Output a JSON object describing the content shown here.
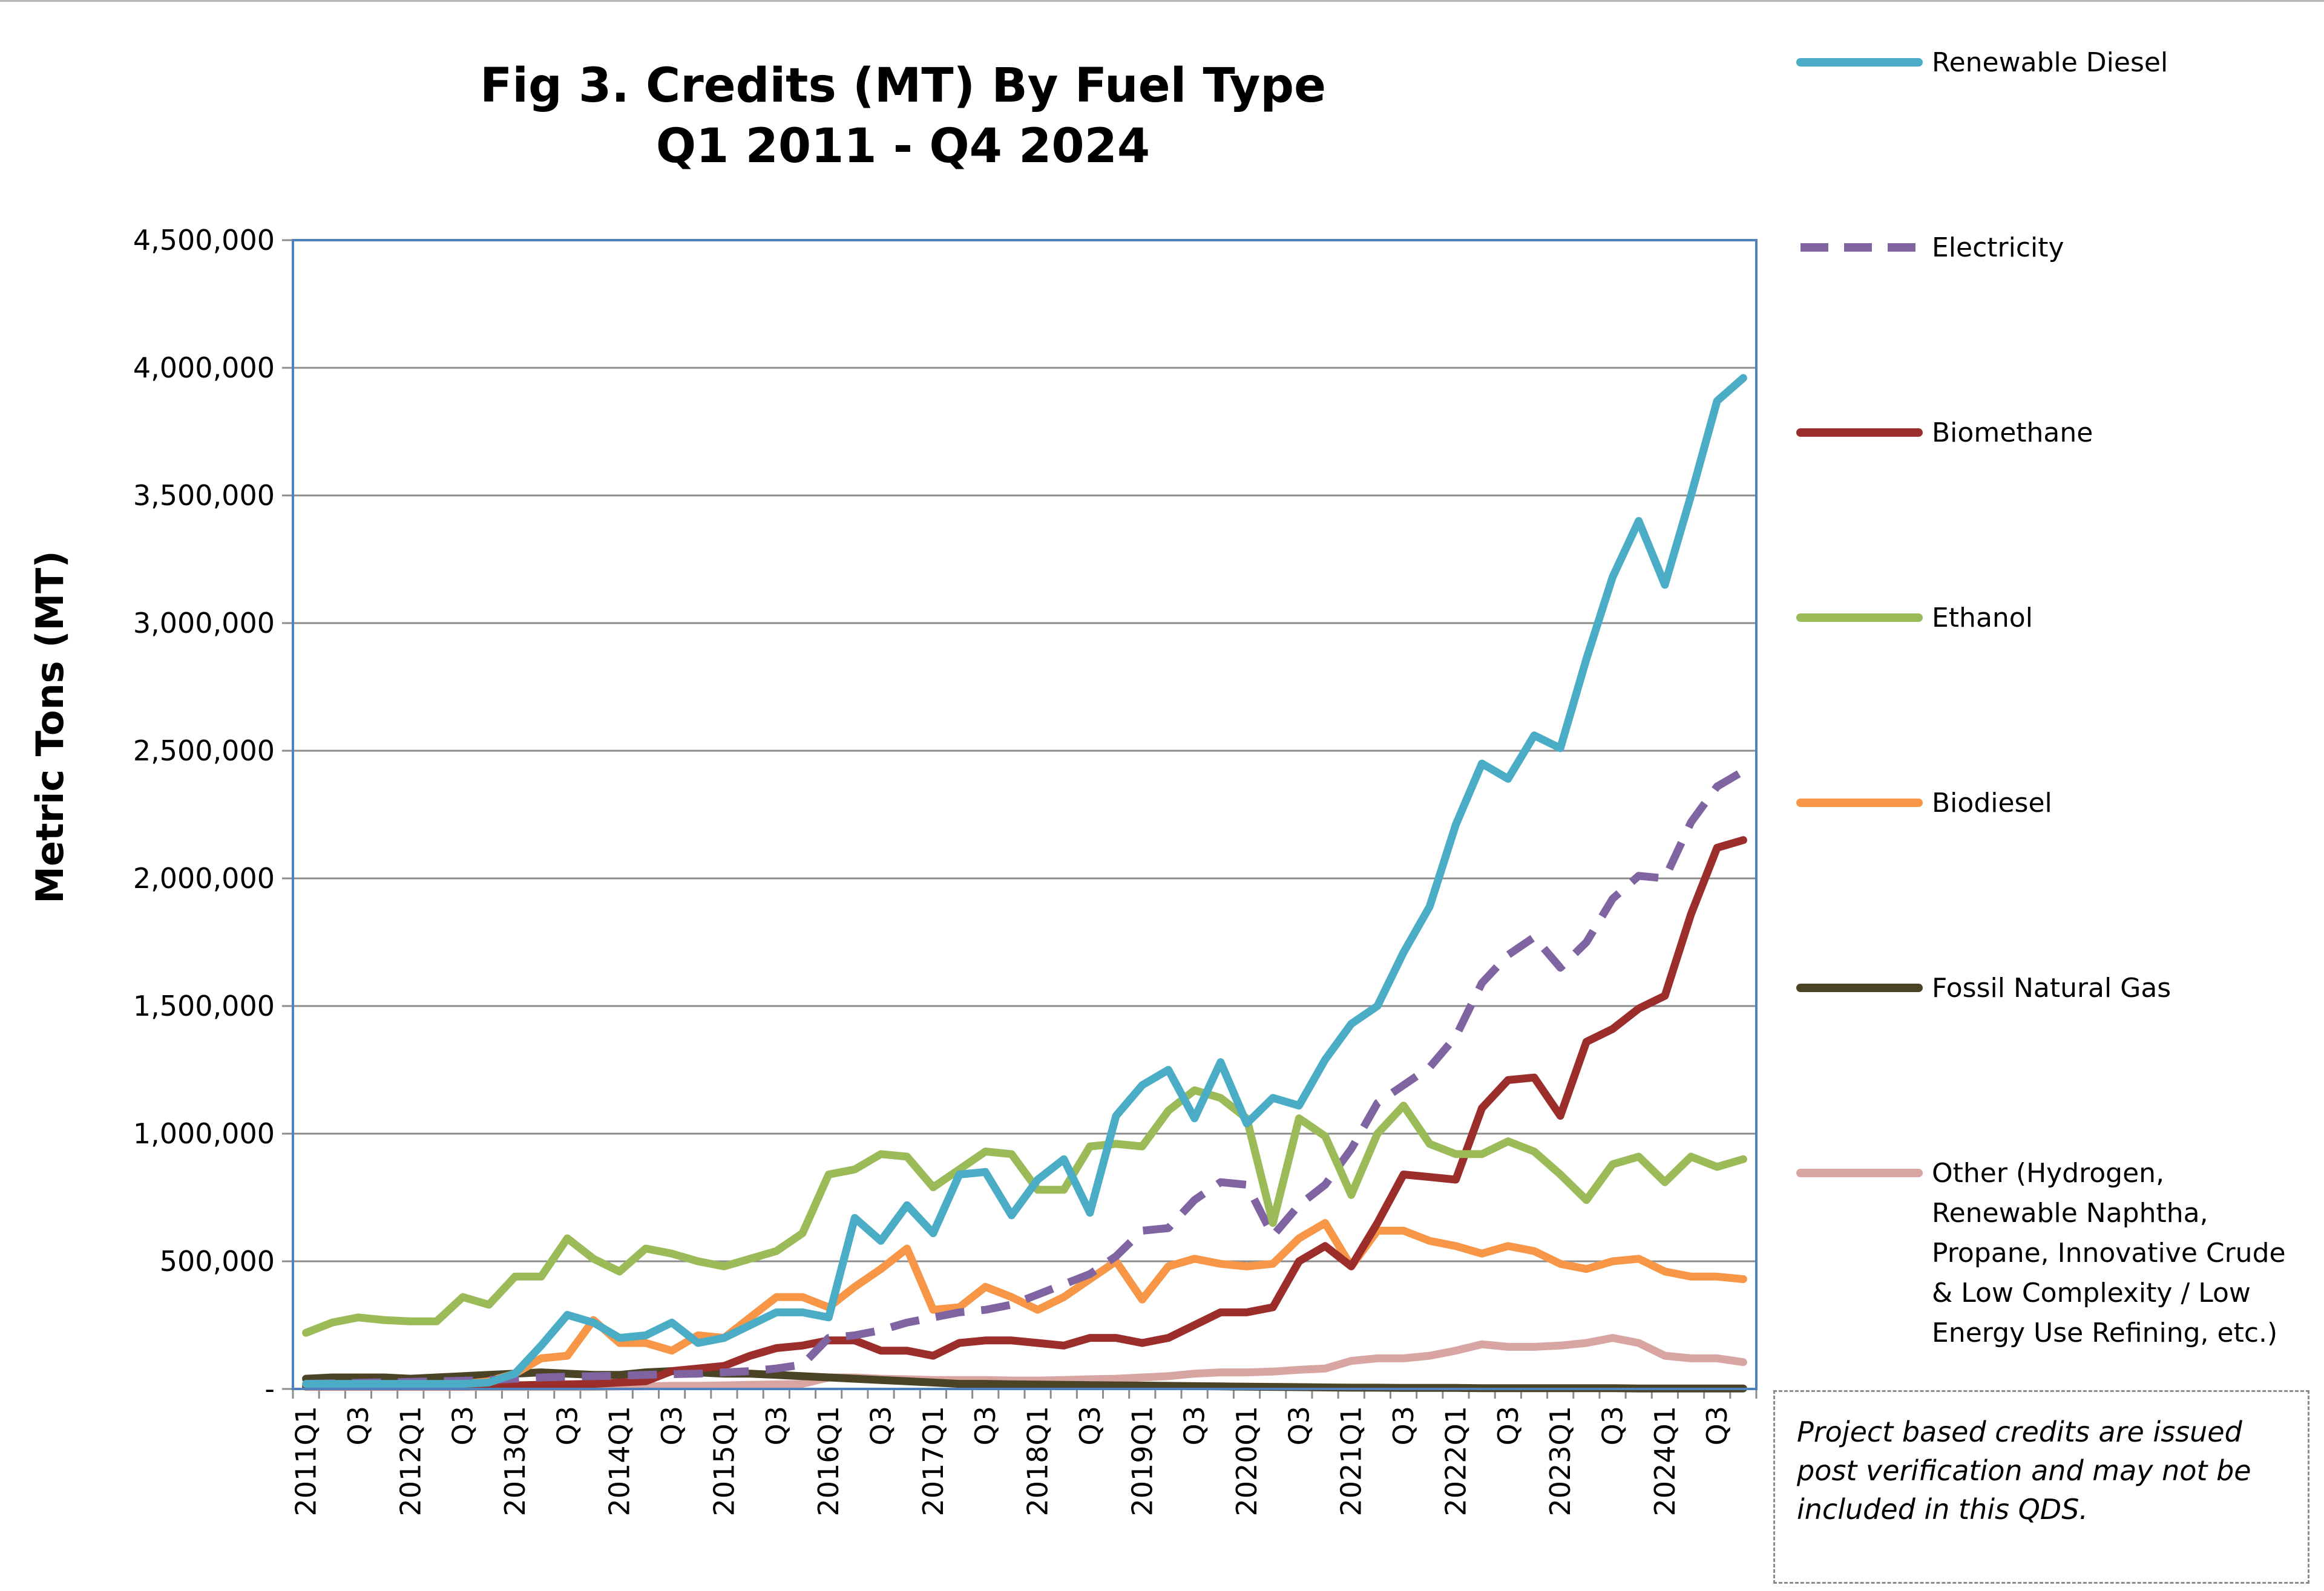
{
  "chart_data": {
    "type": "line",
    "title": [
      "Fig 3. Credits (MT) By Fuel Type",
      "Q1 2011 - Q4 2024"
    ],
    "ylabel": "Metric Tons (MT)",
    "xlabel": "",
    "ylim": [
      0,
      4500000
    ],
    "yticks": [
      0,
      500000,
      1000000,
      1500000,
      2000000,
      2500000,
      3000000,
      3500000,
      4000000,
      4500000
    ],
    "ytick_labels": [
      "-",
      "500,000",
      "1,000,000",
      "1,500,000",
      "2,000,000",
      "2,500,000",
      "3,000,000",
      "3,500,000",
      "4,000,000",
      "4,500,000"
    ],
    "x_count": 56,
    "xtick_labels": [
      {
        "i": 0,
        "label": "2011Q1"
      },
      {
        "i": 2,
        "label": "Q3"
      },
      {
        "i": 4,
        "label": "2012Q1"
      },
      {
        "i": 6,
        "label": "Q3"
      },
      {
        "i": 8,
        "label": "2013Q1"
      },
      {
        "i": 10,
        "label": "Q3"
      },
      {
        "i": 12,
        "label": "2014Q1"
      },
      {
        "i": 14,
        "label": "Q3"
      },
      {
        "i": 16,
        "label": "2015Q1"
      },
      {
        "i": 18,
        "label": "Q3"
      },
      {
        "i": 20,
        "label": "2016Q1"
      },
      {
        "i": 22,
        "label": "Q3"
      },
      {
        "i": 24,
        "label": "2017Q1"
      },
      {
        "i": 26,
        "label": "Q3"
      },
      {
        "i": 28,
        "label": "2018Q1"
      },
      {
        "i": 30,
        "label": "Q3"
      },
      {
        "i": 32,
        "label": "2019Q1"
      },
      {
        "i": 34,
        "label": "Q3"
      },
      {
        "i": 36,
        "label": "2020Q1"
      },
      {
        "i": 38,
        "label": "Q3"
      },
      {
        "i": 40,
        "label": "2021Q1"
      },
      {
        "i": 42,
        "label": "Q3"
      },
      {
        "i": 44,
        "label": "2022Q1"
      },
      {
        "i": 46,
        "label": "Q3"
      },
      {
        "i": 48,
        "label": "2023Q1"
      },
      {
        "i": 50,
        "label": "Q3"
      },
      {
        "i": 52,
        "label": "2024Q1"
      },
      {
        "i": 54,
        "label": "Q3"
      }
    ],
    "grid": true,
    "legend_position": "right",
    "series": [
      {
        "name": "Renewable Diesel",
        "color": "#4BACC6",
        "dash": false,
        "values": [
          20000,
          20000,
          20000,
          20000,
          20000,
          20000,
          20000,
          25000,
          60000,
          170000,
          290000,
          260000,
          200000,
          210000,
          260000,
          180000,
          200000,
          250000,
          300000,
          300000,
          280000,
          670000,
          580000,
          720000,
          610000,
          840000,
          850000,
          680000,
          820000,
          900000,
          690000,
          1070000,
          1190000,
          1250000,
          1060000,
          1280000,
          1040000,
          1140000,
          1110000,
          1290000,
          1430000,
          1500000,
          1710000,
          1890000,
          2210000,
          2450000,
          2390000,
          2560000,
          2510000,
          2860000,
          3180000,
          3400000,
          3150000,
          3500000,
          3870000,
          3960000
        ]
      },
      {
        "name": "Electricity",
        "color": "#8064A2",
        "dash": true,
        "values": [
          20000,
          22000,
          24000,
          26000,
          28000,
          30000,
          32000,
          35000,
          40000,
          45000,
          48000,
          50000,
          52000,
          55000,
          58000,
          60000,
          65000,
          70000,
          80000,
          95000,
          200000,
          210000,
          230000,
          260000,
          280000,
          300000,
          310000,
          330000,
          370000,
          410000,
          450000,
          520000,
          620000,
          630000,
          740000,
          810000,
          800000,
          600000,
          720000,
          800000,
          940000,
          1120000,
          1190000,
          1260000,
          1380000,
          1590000,
          1700000,
          1770000,
          1650000,
          1750000,
          1920000,
          2010000,
          2000000,
          2220000,
          2360000,
          2420000
        ]
      },
      {
        "name": "Biomethane",
        "color": "#9B2D2A",
        "dash": false,
        "values": [
          10000,
          10000,
          10000,
          10000,
          10000,
          10000,
          10000,
          12000,
          14000,
          16000,
          18000,
          20000,
          25000,
          30000,
          70000,
          80000,
          90000,
          130000,
          160000,
          170000,
          190000,
          190000,
          150000,
          150000,
          130000,
          180000,
          190000,
          190000,
          180000,
          170000,
          200000,
          200000,
          180000,
          200000,
          250000,
          300000,
          300000,
          320000,
          500000,
          560000,
          480000,
          650000,
          840000,
          830000,
          820000,
          1100000,
          1210000,
          1220000,
          1070000,
          1360000,
          1410000,
          1490000,
          1540000,
          1860000,
          2120000,
          2150000
        ]
      },
      {
        "name": "Ethanol",
        "color": "#9BBB59",
        "dash": false,
        "values": [
          220000,
          260000,
          280000,
          270000,
          265000,
          265000,
          360000,
          330000,
          440000,
          440000,
          590000,
          510000,
          460000,
          550000,
          530000,
          500000,
          480000,
          510000,
          540000,
          610000,
          840000,
          860000,
          920000,
          910000,
          790000,
          860000,
          930000,
          920000,
          780000,
          780000,
          950000,
          960000,
          950000,
          1090000,
          1170000,
          1140000,
          1060000,
          650000,
          1060000,
          990000,
          760000,
          1000000,
          1110000,
          960000,
          920000,
          920000,
          970000,
          930000,
          840000,
          740000,
          880000,
          910000,
          810000,
          910000,
          870000,
          900000
        ]
      },
      {
        "name": "Biodiesel",
        "color": "#F79646",
        "dash": false,
        "values": [
          15000,
          15000,
          15000,
          15000,
          15000,
          15000,
          20000,
          30000,
          60000,
          120000,
          130000,
          270000,
          180000,
          180000,
          150000,
          210000,
          200000,
          280000,
          360000,
          360000,
          320000,
          400000,
          470000,
          550000,
          310000,
          320000,
          400000,
          360000,
          310000,
          360000,
          430000,
          500000,
          350000,
          480000,
          510000,
          490000,
          480000,
          490000,
          590000,
          650000,
          480000,
          620000,
          620000,
          580000,
          560000,
          530000,
          560000,
          540000,
          490000,
          470000,
          500000,
          510000,
          460000,
          440000,
          440000,
          430000
        ]
      },
      {
        "name": "Fossil Natural Gas",
        "color": "#4A4326",
        "dash": false,
        "values": [
          40000,
          45000,
          45000,
          45000,
          40000,
          45000,
          50000,
          55000,
          60000,
          65000,
          60000,
          55000,
          55000,
          65000,
          70000,
          65000,
          60000,
          60000,
          55000,
          50000,
          45000,
          40000,
          35000,
          30000,
          25000,
          20000,
          20000,
          18000,
          17000,
          16000,
          15000,
          14000,
          13000,
          12000,
          11000,
          10000,
          9000,
          8000,
          7000,
          6000,
          5000,
          5000,
          4000,
          4000,
          4000,
          3000,
          3000,
          3000,
          3000,
          3000,
          3000,
          2000,
          2000,
          2000,
          2000,
          2000
        ]
      },
      {
        "name": "Other (Hydrogen, Renewable Naphtha, Propane, Innovative Crude & Low Complexity / Low Energy Use Refining, etc.)",
        "legend_lines": [
          "Other (Hydrogen,",
          "Renewable Naphtha,",
          "Propane, Innovative Crude",
          "& Low Complexity / Low",
          "Energy Use Refining, etc.)"
        ],
        "color": "#D8A5A3",
        "dash": false,
        "values": [
          8000,
          8000,
          8000,
          8000,
          8000,
          8000,
          8000,
          8000,
          8000,
          8000,
          8000,
          8000,
          10000,
          10000,
          12000,
          12000,
          14000,
          16000,
          18000,
          20000,
          45000,
          45000,
          40000,
          38000,
          35000,
          35000,
          35000,
          33000,
          33000,
          35000,
          38000,
          40000,
          45000,
          50000,
          60000,
          65000,
          65000,
          68000,
          75000,
          80000,
          110000,
          120000,
          120000,
          130000,
          150000,
          175000,
          165000,
          165000,
          170000,
          180000,
          200000,
          180000,
          130000,
          120000,
          120000,
          105000
        ]
      }
    ]
  },
  "note": {
    "line1": "Project based credits are issued",
    "line2": "post verification and may not be",
    "line3": "included in this QDS."
  }
}
